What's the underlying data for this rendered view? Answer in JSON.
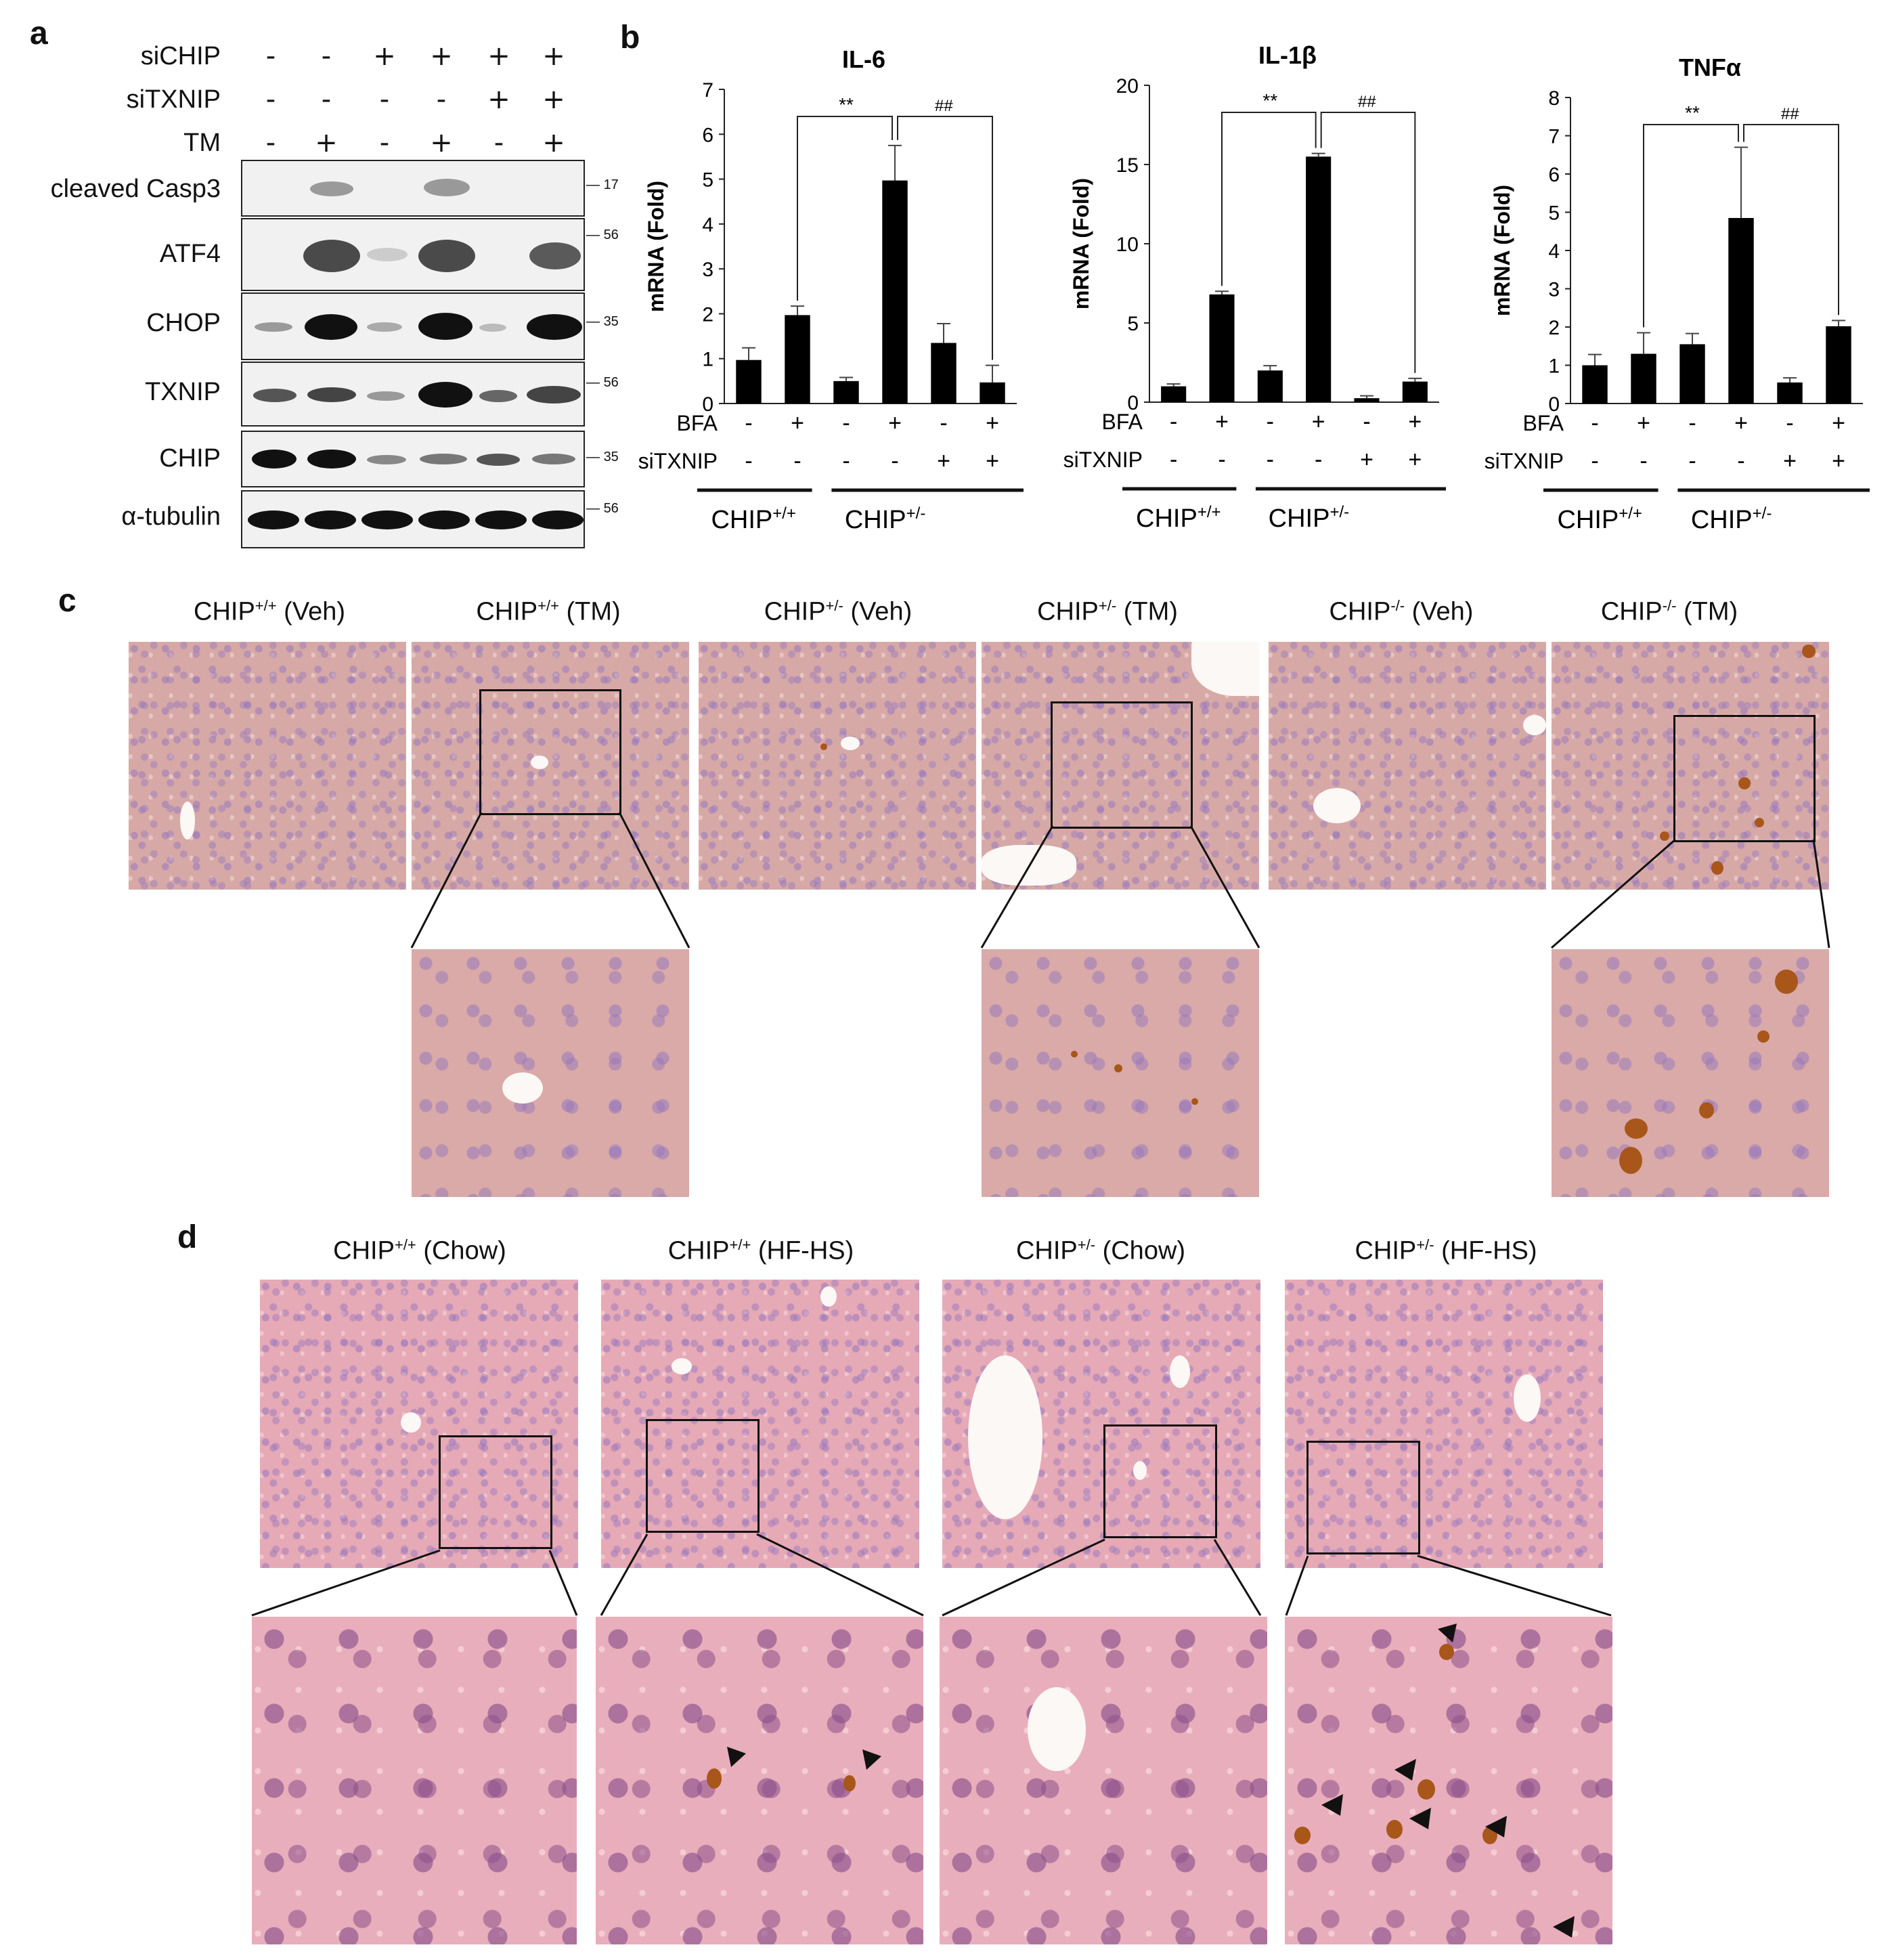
{
  "panel_a": {
    "letter": "a",
    "rows": [
      {
        "label": "siCHIP",
        "signs": [
          "-",
          "-",
          "+",
          "+",
          "+",
          "+"
        ]
      },
      {
        "label": "siTXNIP",
        "signs": [
          "-",
          "-",
          "-",
          "-",
          "+",
          "+"
        ]
      },
      {
        "label": "TM",
        "signs": [
          "-",
          "+",
          "-",
          "+",
          "-",
          "+"
        ]
      }
    ],
    "blots": [
      {
        "label": "cleaved Casp3",
        "mw": "17"
      },
      {
        "label": "ATF4",
        "mw": "56"
      },
      {
        "label": "CHOP",
        "mw": "35"
      },
      {
        "label": "TXNIP",
        "mw": "56"
      },
      {
        "label": "CHIP",
        "mw": "35"
      },
      {
        "label": "α-tubulin",
        "mw": "56"
      }
    ]
  },
  "panel_b": {
    "letter": "b",
    "bottom_rows": [
      {
        "label": "BFA",
        "signs": [
          "-",
          "+",
          "-",
          "+",
          "-",
          "+"
        ]
      },
      {
        "label": "siTXNIP",
        "signs": [
          "-",
          "-",
          "-",
          "-",
          "+",
          "+"
        ]
      }
    ],
    "group_base": "CHIP",
    "group_wt_sup": "+/+",
    "group_het_sup": "+/-",
    "sig_wt": "**",
    "sig_sitxnip": "##"
  },
  "chart_data": [
    {
      "type": "bar",
      "title": "IL-6",
      "ylabel": "mRNA (Fold)",
      "ylim": [
        0,
        7
      ],
      "yticks": [
        0,
        1,
        2,
        3,
        4,
        5,
        6,
        7
      ],
      "values": [
        0.97,
        1.97,
        0.5,
        4.97,
        1.35,
        0.47
      ],
      "errors": [
        0.27,
        0.2,
        0.08,
        0.78,
        0.43,
        0.38
      ]
    },
    {
      "type": "bar",
      "title": "IL-1β",
      "ylabel": "mRNA (Fold)",
      "ylim": [
        0,
        20
      ],
      "yticks": [
        0,
        5,
        10,
        15,
        20
      ],
      "values": [
        1.0,
        6.8,
        2.0,
        15.5,
        0.25,
        1.3
      ],
      "errors": [
        0.15,
        0.2,
        0.3,
        0.2,
        0.15,
        0.2
      ]
    },
    {
      "type": "bar",
      "title": "TNFα",
      "ylabel": "mRNA (Fold)",
      "ylim": [
        0,
        8
      ],
      "yticks": [
        0,
        1,
        2,
        3,
        4,
        5,
        6,
        7,
        8
      ],
      "values": [
        1.0,
        1.3,
        1.55,
        4.85,
        0.55,
        2.02
      ],
      "errors": [
        0.28,
        0.55,
        0.28,
        1.85,
        0.12,
        0.15
      ]
    }
  ],
  "panel_c": {
    "letter": "c",
    "titles": [
      {
        "base": "CHIP",
        "sup": "+/+",
        "suffix": " (Veh)"
      },
      {
        "base": "CHIP",
        "sup": "+/+",
        "suffix": " (TM)"
      },
      {
        "base": "CHIP",
        "sup": "+/-",
        "suffix": " (Veh)"
      },
      {
        "base": "CHIP",
        "sup": "+/-",
        "suffix": " (TM)"
      },
      {
        "base": "CHIP",
        "sup": "-/-",
        "suffix": " (Veh)"
      },
      {
        "base": "CHIP",
        "sup": "-/-",
        "suffix": " (TM)"
      }
    ]
  },
  "panel_d": {
    "letter": "d",
    "titles": [
      {
        "base": "CHIP",
        "sup": "+/+",
        "suffix": " (Chow)"
      },
      {
        "base": "CHIP",
        "sup": "+/+",
        "suffix": " (HF-HS)"
      },
      {
        "base": "CHIP",
        "sup": "+/-",
        "suffix": " (Chow)"
      },
      {
        "base": "CHIP",
        "sup": "+/-",
        "suffix": " (HF-HS)"
      }
    ]
  },
  "colors": {
    "bar": "#000000",
    "stain": "#a9561a",
    "tissue": "#d7a9a6",
    "tissue_pink": "#e6a9b6"
  }
}
